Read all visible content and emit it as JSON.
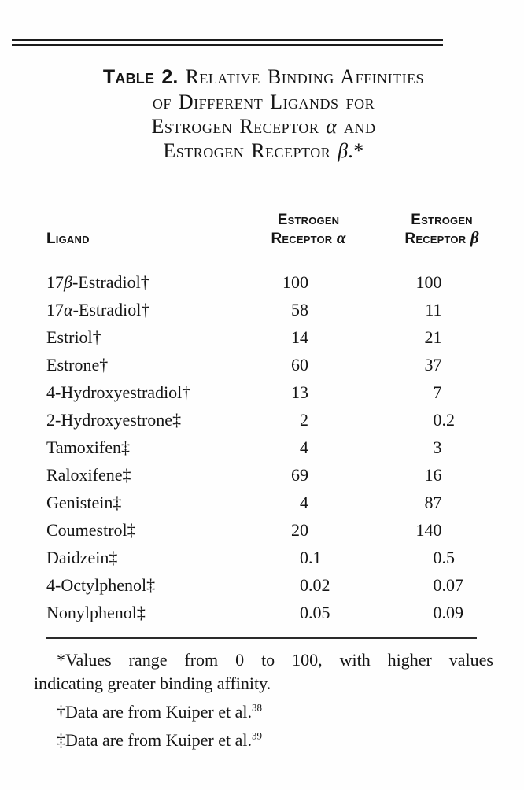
{
  "page": {
    "background": "#fefefe",
    "text_color": "#151515",
    "rule_color": "#1c1c1c"
  },
  "title": {
    "lines": [
      {
        "segments": [
          {
            "text": "Table 2.",
            "style": "label"
          },
          {
            "text": " Relative Binding Affinities",
            "style": "sc"
          }
        ]
      },
      {
        "segments": [
          {
            "text": "of Different Ligands for",
            "style": "sc"
          }
        ]
      },
      {
        "segments": [
          {
            "text": "Estrogen Receptor ",
            "style": "sc"
          },
          {
            "text": "α",
            "style": "greek"
          },
          {
            "text": " and",
            "style": "sc"
          }
        ]
      },
      {
        "segments": [
          {
            "text": "Estrogen Receptor ",
            "style": "sc"
          },
          {
            "text": "β",
            "style": "greek"
          },
          {
            "text": ".*",
            "style": "sc"
          }
        ]
      }
    ]
  },
  "table": {
    "columns": [
      {
        "id": "ligand",
        "name": "column-header-ligand",
        "lines": [
          [
            {
              "text": "Ligand",
              "style": "sc"
            }
          ]
        ]
      },
      {
        "id": "er_alpha",
        "name": "column-header-estrogen-receptor-alpha",
        "lines": [
          [
            {
              "text": "Estrogen",
              "style": "sc"
            }
          ],
          [
            {
              "text": "Receptor ",
              "style": "sc"
            },
            {
              "text": "α",
              "style": "greek"
            }
          ]
        ]
      },
      {
        "id": "er_beta",
        "name": "column-header-estrogen-receptor-beta",
        "lines": [
          [
            {
              "text": "Estrogen",
              "style": "sc"
            }
          ],
          [
            {
              "text": "Receptor ",
              "style": "sc"
            },
            {
              "text": "β",
              "style": "greek"
            }
          ]
        ]
      }
    ],
    "rows": [
      {
        "ligand": "17β-Estradiol†",
        "er_alpha": "100",
        "er_beta": "100"
      },
      {
        "ligand": "17α-Estradiol†",
        "er_alpha": "58",
        "er_beta": "11"
      },
      {
        "ligand": "Estriol†",
        "er_alpha": "14",
        "er_beta": "21"
      },
      {
        "ligand": "Estrone†",
        "er_alpha": "60",
        "er_beta": "37"
      },
      {
        "ligand": "4-Hydroxyestradiol†",
        "er_alpha": "13",
        "er_beta": "7"
      },
      {
        "ligand": "2-Hydroxyestrone‡",
        "er_alpha": "2",
        "er_beta": "0.2"
      },
      {
        "ligand": "Tamoxifen‡",
        "er_alpha": "4",
        "er_beta": "3"
      },
      {
        "ligand": "Raloxifene‡",
        "er_alpha": "69",
        "er_beta": "16"
      },
      {
        "ligand": "Genistein‡",
        "er_alpha": "4",
        "er_beta": "87"
      },
      {
        "ligand": "Coumestrol‡",
        "er_alpha": "20",
        "er_beta": "140"
      },
      {
        "ligand": "Daidzein‡",
        "er_alpha": "0.1",
        "er_beta": "0.5"
      },
      {
        "ligand": "4-Octylphenol‡",
        "er_alpha": "0.02",
        "er_beta": "0.07"
      },
      {
        "ligand": "Nonylphenol‡",
        "er_alpha": "0.05",
        "er_beta": "0.09"
      }
    ]
  },
  "chart_data": {
    "type": "table",
    "title": "Table 2. Relative Binding Affinities of Different Ligands for Estrogen Receptor α and Estrogen Receptor β.",
    "categories": [
      "17β-Estradiol",
      "17α-Estradiol",
      "Estriol",
      "Estrone",
      "4-Hydroxyestradiol",
      "2-Hydroxyestrone",
      "Tamoxifen",
      "Raloxifene",
      "Genistein",
      "Coumestrol",
      "Daidzein",
      "4-Octylphenol",
      "Nonylphenol"
    ],
    "series": [
      {
        "name": "Estrogen Receptor α",
        "values": [
          100,
          58,
          14,
          60,
          13,
          2,
          4,
          69,
          4,
          20,
          0.1,
          0.02,
          0.05
        ]
      },
      {
        "name": "Estrogen Receptor β",
        "values": [
          100,
          11,
          21,
          37,
          7,
          0.2,
          3,
          16,
          87,
          140,
          0.5,
          0.07,
          0.09
        ]
      }
    ]
  },
  "footnotes": [
    {
      "marker": "*",
      "lines": [
        "Values range from 0 to 100, with higher values",
        "indicating greater binding affinity."
      ]
    },
    {
      "marker": "†",
      "text": "Data are from Kuiper et al.",
      "ref": "38"
    },
    {
      "marker": "‡",
      "text": "Data are from Kuiper et al.",
      "ref": "39"
    }
  ]
}
